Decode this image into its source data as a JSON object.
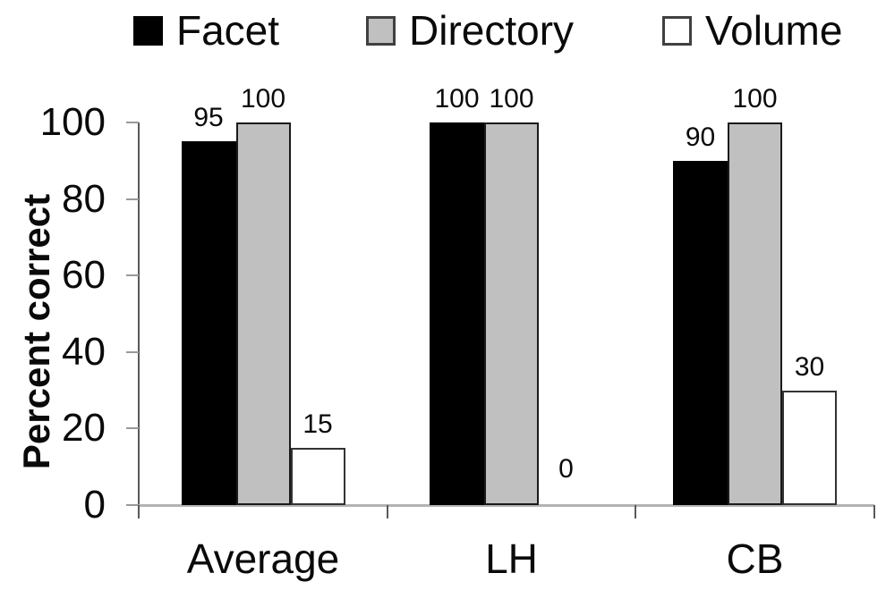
{
  "chart_data": {
    "type": "bar",
    "title": "",
    "categories": [
      "Average",
      "LH",
      "CB"
    ],
    "series": [
      {
        "name": "Facet",
        "values": [
          95,
          100,
          90
        ],
        "fill": "#000000",
        "border": "#000000"
      },
      {
        "name": "Directory",
        "values": [
          100,
          100,
          100
        ],
        "fill": "#c0c0c0",
        "border": "#1a1a1a"
      },
      {
        "name": "Volume",
        "values": [
          15,
          0,
          30
        ],
        "fill": "#ffffff",
        "border": "#333333"
      }
    ],
    "xlabel": "",
    "ylabel": "Percent correct",
    "ylim": [
      0,
      100
    ],
    "yticks": [
      0,
      20,
      40,
      60,
      80,
      100
    ],
    "grid": false,
    "legend_position": "top",
    "data_labels": true
  },
  "legend": {
    "items": [
      {
        "label": "Facet",
        "fill": "#000000",
        "border": "#000000"
      },
      {
        "label": "Directory",
        "fill": "#c0c0c0",
        "border": "#404040"
      },
      {
        "label": "Volume",
        "fill": "#ffffff",
        "border": "#404040"
      }
    ]
  },
  "colors": {
    "background": "#ffffff",
    "text": "#0a0a0a",
    "y_axis_line": "#595959",
    "x_axis_line": "#b3b3b3",
    "y_tick": "#999999",
    "x_tick": "#595959"
  }
}
